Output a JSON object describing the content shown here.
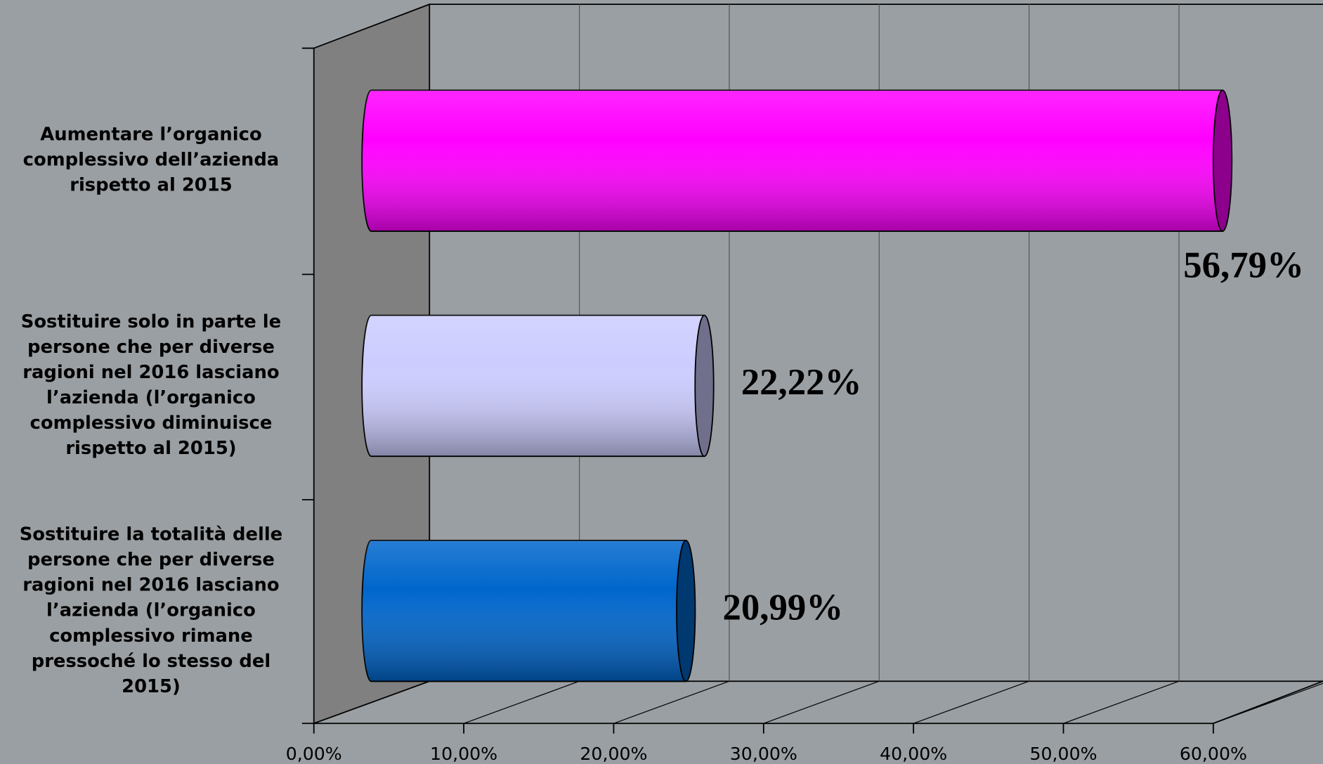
{
  "chart_data": {
    "type": "bar3d",
    "categories": [
      "Aumentare l’organico complessivo dell’azienda rispetto al 2015",
      "Sostituire solo in parte le persone che per diverse ragioni nel 2016 lasciano l’azienda (l’organico complessivo diminuisce rispetto al 2015)",
      "Sostituire la totalità delle persone che per diverse ragioni nel 2016 lasciano l’azienda (l’organico complessivo rimane pressoché lo stesso del 2015)"
    ],
    "values": [
      56.79,
      22.22,
      20.99
    ],
    "value_labels": [
      "56,79%",
      "22,22%",
      "20,99%"
    ],
    "colors": [
      "#ff00ff",
      "#ccccff",
      "#0066cc"
    ],
    "xlim": [
      0,
      60
    ],
    "xticks": [
      {
        "value": 0,
        "label": "0,00%"
      },
      {
        "value": 10,
        "label": "10,00%"
      },
      {
        "value": 20,
        "label": "20,00%"
      },
      {
        "value": 30,
        "label": "30,00%"
      },
      {
        "value": 40,
        "label": "40,00%"
      },
      {
        "value": 50,
        "label": "50,00%"
      },
      {
        "value": 60,
        "label": "60,00%"
      }
    ],
    "grid": true
  }
}
